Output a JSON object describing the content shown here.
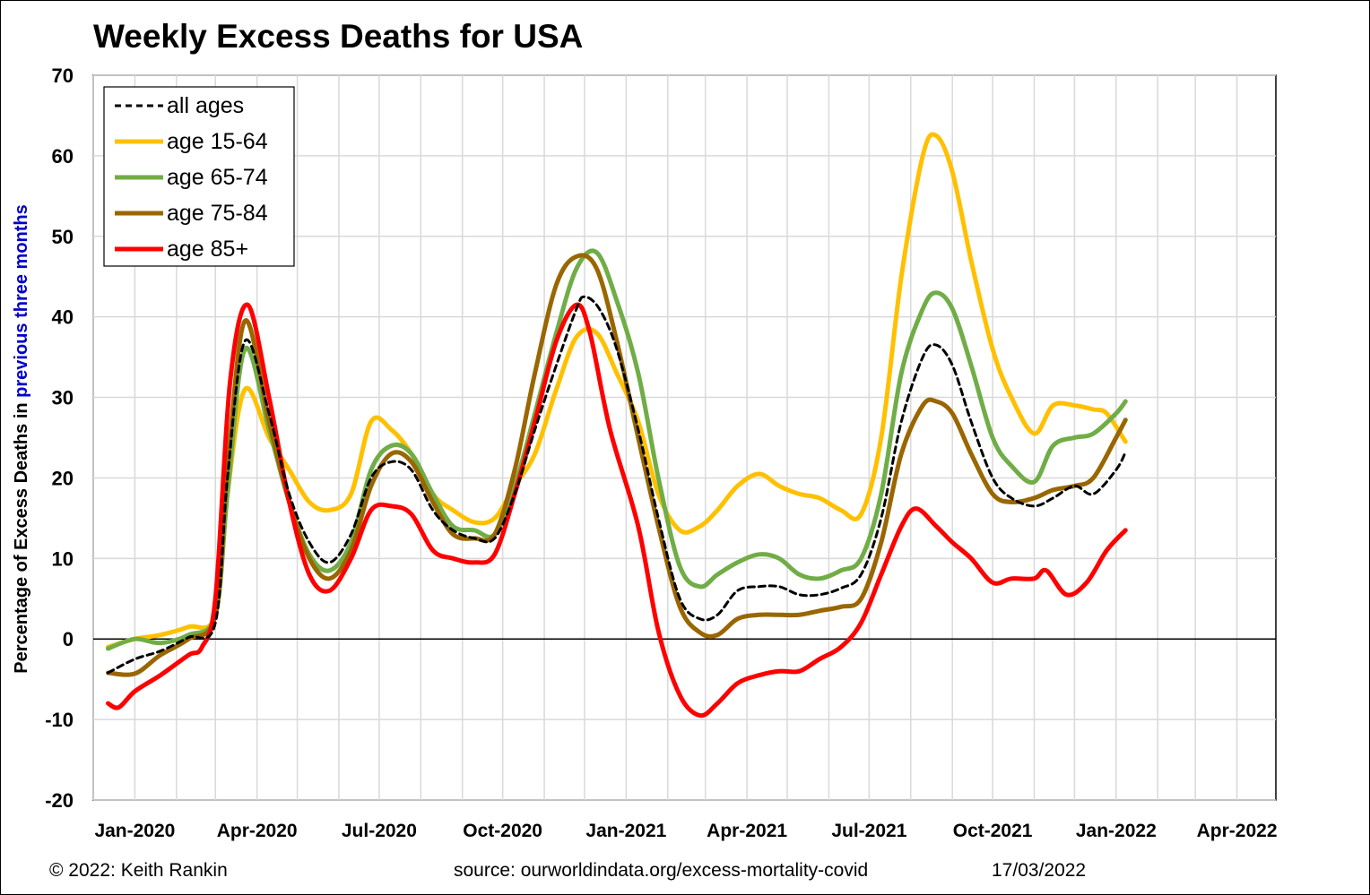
{
  "title": "Weekly Excess Deaths for USA",
  "footer": {
    "copyright": "© 2022: Keith Rankin",
    "source": "source: ourworldindata.org/excess-mortality-covid",
    "date": "17/03/2022"
  },
  "chart_data": {
    "type": "line",
    "ylabel_parts": [
      "Percentage of Excess Deaths in ",
      "previous three months"
    ],
    "ylabel_colors": [
      "#000000",
      "#0000cc"
    ],
    "ylim": [
      -20,
      70
    ],
    "yticks": [
      -20,
      -10,
      0,
      10,
      20,
      30,
      40,
      50,
      60,
      70
    ],
    "xlim": [
      "2019-12-01",
      "2022-04-30"
    ],
    "xticks": [
      {
        "date": "2020-01-01",
        "label": "Jan-2020"
      },
      {
        "date": "2020-04-01",
        "label": "Apr-2020"
      },
      {
        "date": "2020-07-01",
        "label": "Jul-2020"
      },
      {
        "date": "2020-10-01",
        "label": "Oct-2020"
      },
      {
        "date": "2021-01-01",
        "label": "Jan-2021"
      },
      {
        "date": "2021-04-01",
        "label": "Apr-2021"
      },
      {
        "date": "2021-07-01",
        "label": "Jul-2021"
      },
      {
        "date": "2021-10-01",
        "label": "Oct-2021"
      },
      {
        "date": "2022-01-01",
        "label": "Jan-2022"
      },
      {
        "date": "2022-04-01",
        "label": "Apr-2022"
      }
    ],
    "grid": true,
    "legend_position": "top-left",
    "series": [
      {
        "name": "all ages",
        "color": "#000000",
        "dashed": true,
        "points": [
          [
            "2019-12-12",
            -4.2
          ],
          [
            "2020-01-01",
            -2.5
          ],
          [
            "2020-01-20",
            -1.5
          ],
          [
            "2020-02-10",
            0.2
          ],
          [
            "2020-03-01",
            2
          ],
          [
            "2020-03-10",
            20
          ],
          [
            "2020-03-23",
            37
          ],
          [
            "2020-04-10",
            28
          ],
          [
            "2020-04-25",
            18
          ],
          [
            "2020-05-10",
            12
          ],
          [
            "2020-05-25",
            9.5
          ],
          [
            "2020-06-10",
            13
          ],
          [
            "2020-06-25",
            20
          ],
          [
            "2020-07-10",
            22
          ],
          [
            "2020-07-25",
            21
          ],
          [
            "2020-08-10",
            16
          ],
          [
            "2020-08-25",
            13.5
          ],
          [
            "2020-09-10",
            12.5
          ],
          [
            "2020-09-25",
            12.5
          ],
          [
            "2020-10-10",
            18
          ],
          [
            "2020-10-25",
            26
          ],
          [
            "2020-11-10",
            34
          ],
          [
            "2020-11-25",
            41
          ],
          [
            "2020-12-01",
            42.5
          ],
          [
            "2020-12-12",
            41
          ],
          [
            "2020-12-25",
            36
          ],
          [
            "2021-01-10",
            26
          ],
          [
            "2021-01-25",
            15
          ],
          [
            "2021-02-10",
            5
          ],
          [
            "2021-02-25",
            2.5
          ],
          [
            "2021-03-10",
            3
          ],
          [
            "2021-03-25",
            6
          ],
          [
            "2021-04-10",
            6.5
          ],
          [
            "2021-04-25",
            6.5
          ],
          [
            "2021-05-10",
            5.5
          ],
          [
            "2021-05-25",
            5.5
          ],
          [
            "2021-06-10",
            6.3
          ],
          [
            "2021-06-25",
            8
          ],
          [
            "2021-07-10",
            15
          ],
          [
            "2021-07-25",
            27
          ],
          [
            "2021-08-10",
            35
          ],
          [
            "2021-08-20",
            36.5
          ],
          [
            "2021-09-01",
            34
          ],
          [
            "2021-09-15",
            27
          ],
          [
            "2021-10-01",
            20
          ],
          [
            "2021-10-15",
            17.5
          ],
          [
            "2021-11-01",
            16.5
          ],
          [
            "2021-11-15",
            17.5
          ],
          [
            "2021-12-01",
            19
          ],
          [
            "2021-12-15",
            18
          ],
          [
            "2022-01-01",
            21
          ],
          [
            "2022-01-08",
            23.2
          ]
        ]
      },
      {
        "name": "age 15-64",
        "color": "#ffc000",
        "dashed": false,
        "points": [
          [
            "2019-12-12",
            -1
          ],
          [
            "2020-01-01",
            0
          ],
          [
            "2020-01-20",
            0.5
          ],
          [
            "2020-02-10",
            1.5
          ],
          [
            "2020-03-01",
            3
          ],
          [
            "2020-03-10",
            18
          ],
          [
            "2020-03-23",
            31
          ],
          [
            "2020-04-10",
            25
          ],
          [
            "2020-04-25",
            21
          ],
          [
            "2020-05-10",
            17
          ],
          [
            "2020-05-25",
            16
          ],
          [
            "2020-06-10",
            18
          ],
          [
            "2020-06-25",
            27
          ],
          [
            "2020-07-10",
            26
          ],
          [
            "2020-07-25",
            23
          ],
          [
            "2020-08-10",
            18
          ],
          [
            "2020-08-25",
            16
          ],
          [
            "2020-09-10",
            14.5
          ],
          [
            "2020-09-25",
            15
          ],
          [
            "2020-10-10",
            19
          ],
          [
            "2020-10-25",
            23
          ],
          [
            "2020-11-10",
            31
          ],
          [
            "2020-11-25",
            37.5
          ],
          [
            "2020-12-10",
            38
          ],
          [
            "2020-12-25",
            33
          ],
          [
            "2021-01-10",
            27
          ],
          [
            "2021-01-25",
            18
          ],
          [
            "2021-02-10",
            13.5
          ],
          [
            "2021-02-25",
            14
          ],
          [
            "2021-03-10",
            16
          ],
          [
            "2021-03-25",
            19
          ],
          [
            "2021-04-10",
            20.5
          ],
          [
            "2021-04-25",
            19
          ],
          [
            "2021-05-10",
            18
          ],
          [
            "2021-05-25",
            17.5
          ],
          [
            "2021-06-10",
            16
          ],
          [
            "2021-06-25",
            15.5
          ],
          [
            "2021-07-10",
            25
          ],
          [
            "2021-07-25",
            45
          ],
          [
            "2021-08-10",
            60
          ],
          [
            "2021-08-20",
            62.5
          ],
          [
            "2021-09-01",
            58
          ],
          [
            "2021-09-15",
            47
          ],
          [
            "2021-10-01",
            36
          ],
          [
            "2021-10-15",
            30
          ],
          [
            "2021-11-01",
            25.5
          ],
          [
            "2021-11-15",
            29
          ],
          [
            "2021-12-01",
            29
          ],
          [
            "2021-12-15",
            28.5
          ],
          [
            "2021-12-25",
            28
          ],
          [
            "2022-01-08",
            24.5
          ]
        ]
      },
      {
        "name": "age 65-74",
        "color": "#70ad47",
        "dashed": false,
        "points": [
          [
            "2019-12-12",
            -1.2
          ],
          [
            "2020-01-01",
            0
          ],
          [
            "2020-01-20",
            -0.5
          ],
          [
            "2020-02-10",
            0.5
          ],
          [
            "2020-03-01",
            3
          ],
          [
            "2020-03-10",
            18
          ],
          [
            "2020-03-23",
            36
          ],
          [
            "2020-04-10",
            26
          ],
          [
            "2020-04-25",
            17
          ],
          [
            "2020-05-10",
            10.5
          ],
          [
            "2020-05-25",
            8.5
          ],
          [
            "2020-06-10",
            12
          ],
          [
            "2020-06-25",
            21
          ],
          [
            "2020-07-10",
            24
          ],
          [
            "2020-07-25",
            23
          ],
          [
            "2020-08-10",
            18
          ],
          [
            "2020-08-25",
            14
          ],
          [
            "2020-09-10",
            13.5
          ],
          [
            "2020-09-25",
            13
          ],
          [
            "2020-10-10",
            19
          ],
          [
            "2020-10-25",
            28
          ],
          [
            "2020-11-10",
            38
          ],
          [
            "2020-11-25",
            46
          ],
          [
            "2020-12-10",
            48
          ],
          [
            "2020-12-25",
            42
          ],
          [
            "2021-01-10",
            33
          ],
          [
            "2021-01-25",
            20
          ],
          [
            "2021-02-10",
            9
          ],
          [
            "2021-02-25",
            6.5
          ],
          [
            "2021-03-10",
            8
          ],
          [
            "2021-03-25",
            9.5
          ],
          [
            "2021-04-10",
            10.5
          ],
          [
            "2021-04-25",
            10
          ],
          [
            "2021-05-10",
            8
          ],
          [
            "2021-05-25",
            7.5
          ],
          [
            "2021-06-10",
            8.5
          ],
          [
            "2021-06-25",
            10
          ],
          [
            "2021-07-10",
            18
          ],
          [
            "2021-07-25",
            33
          ],
          [
            "2021-08-10",
            41
          ],
          [
            "2021-08-20",
            43
          ],
          [
            "2021-09-01",
            41
          ],
          [
            "2021-09-15",
            34
          ],
          [
            "2021-10-01",
            25
          ],
          [
            "2021-10-15",
            21.5
          ],
          [
            "2021-11-01",
            19.5
          ],
          [
            "2021-11-15",
            24
          ],
          [
            "2021-12-01",
            25
          ],
          [
            "2021-12-15",
            25.5
          ],
          [
            "2022-01-01",
            28
          ],
          [
            "2022-01-08",
            29.5
          ]
        ]
      },
      {
        "name": "age 75-84",
        "color": "#996600",
        "dashed": false,
        "points": [
          [
            "2019-12-12",
            -4.2
          ],
          [
            "2020-01-01",
            -4.3
          ],
          [
            "2020-01-20",
            -2
          ],
          [
            "2020-02-10",
            0
          ],
          [
            "2020-03-01",
            3
          ],
          [
            "2020-03-10",
            21
          ],
          [
            "2020-03-23",
            39.5
          ],
          [
            "2020-04-10",
            27
          ],
          [
            "2020-04-25",
            17
          ],
          [
            "2020-05-10",
            10
          ],
          [
            "2020-05-25",
            7.5
          ],
          [
            "2020-06-10",
            11
          ],
          [
            "2020-06-25",
            19
          ],
          [
            "2020-07-10",
            23
          ],
          [
            "2020-07-25",
            22
          ],
          [
            "2020-08-10",
            17
          ],
          [
            "2020-08-25",
            13
          ],
          [
            "2020-09-10",
            12.5
          ],
          [
            "2020-09-25",
            13
          ],
          [
            "2020-10-10",
            21
          ],
          [
            "2020-10-25",
            33
          ],
          [
            "2020-11-10",
            44
          ],
          [
            "2020-11-25",
            47.5
          ],
          [
            "2020-12-10",
            46
          ],
          [
            "2020-12-25",
            37
          ],
          [
            "2021-01-10",
            25
          ],
          [
            "2021-01-25",
            14
          ],
          [
            "2021-02-10",
            4
          ],
          [
            "2021-02-25",
            0.8
          ],
          [
            "2021-03-10",
            0.5
          ],
          [
            "2021-03-25",
            2.5
          ],
          [
            "2021-04-10",
            3
          ],
          [
            "2021-04-25",
            3
          ],
          [
            "2021-05-10",
            3
          ],
          [
            "2021-05-25",
            3.5
          ],
          [
            "2021-06-10",
            4
          ],
          [
            "2021-06-25",
            5
          ],
          [
            "2021-07-10",
            12
          ],
          [
            "2021-07-25",
            23
          ],
          [
            "2021-08-10",
            29
          ],
          [
            "2021-08-20",
            29.5
          ],
          [
            "2021-09-01",
            28
          ],
          [
            "2021-09-15",
            23
          ],
          [
            "2021-10-01",
            18
          ],
          [
            "2021-10-15",
            17
          ],
          [
            "2021-11-01",
            17.5
          ],
          [
            "2021-11-15",
            18.5
          ],
          [
            "2021-12-01",
            19
          ],
          [
            "2021-12-15",
            20
          ],
          [
            "2022-01-01",
            25
          ],
          [
            "2022-01-08",
            27.2
          ]
        ]
      },
      {
        "name": "age 85+",
        "color": "#ff0000",
        "dashed": false,
        "points": [
          [
            "2019-12-12",
            -8
          ],
          [
            "2019-12-20",
            -8.5
          ],
          [
            "2020-01-01",
            -6.5
          ],
          [
            "2020-01-20",
            -4.5
          ],
          [
            "2020-02-10",
            -2
          ],
          [
            "2020-02-20",
            -1
          ],
          [
            "2020-03-01",
            5
          ],
          [
            "2020-03-12",
            32
          ],
          [
            "2020-03-25",
            41.5
          ],
          [
            "2020-04-10",
            30
          ],
          [
            "2020-04-25",
            17
          ],
          [
            "2020-05-10",
            8
          ],
          [
            "2020-05-25",
            6
          ],
          [
            "2020-06-10",
            10
          ],
          [
            "2020-06-25",
            16
          ],
          [
            "2020-07-10",
            16.5
          ],
          [
            "2020-07-25",
            15.5
          ],
          [
            "2020-08-10",
            11
          ],
          [
            "2020-08-25",
            10
          ],
          [
            "2020-09-10",
            9.5
          ],
          [
            "2020-09-25",
            10.5
          ],
          [
            "2020-10-10",
            18
          ],
          [
            "2020-10-25",
            27
          ],
          [
            "2020-11-10",
            37
          ],
          [
            "2020-11-25",
            41.5
          ],
          [
            "2020-12-05",
            38
          ],
          [
            "2020-12-20",
            26
          ],
          [
            "2021-01-10",
            14
          ],
          [
            "2021-01-25",
            1
          ],
          [
            "2021-02-10",
            -7
          ],
          [
            "2021-02-25",
            -9.5
          ],
          [
            "2021-03-10",
            -8
          ],
          [
            "2021-03-25",
            -5.5
          ],
          [
            "2021-04-10",
            -4.5
          ],
          [
            "2021-04-25",
            -4
          ],
          [
            "2021-05-10",
            -4
          ],
          [
            "2021-05-25",
            -2.5
          ],
          [
            "2021-06-10",
            -1
          ],
          [
            "2021-06-25",
            2
          ],
          [
            "2021-07-10",
            8
          ],
          [
            "2021-07-25",
            14
          ],
          [
            "2021-08-05",
            16.2
          ],
          [
            "2021-08-20",
            14
          ],
          [
            "2021-09-01",
            12
          ],
          [
            "2021-09-15",
            10
          ],
          [
            "2021-10-01",
            7
          ],
          [
            "2021-10-15",
            7.5
          ],
          [
            "2021-11-01",
            7.5
          ],
          [
            "2021-11-10",
            8.5
          ],
          [
            "2021-11-25",
            5.5
          ],
          [
            "2021-12-10",
            7
          ],
          [
            "2021-12-25",
            11
          ],
          [
            "2022-01-08",
            13.5
          ]
        ]
      }
    ]
  }
}
